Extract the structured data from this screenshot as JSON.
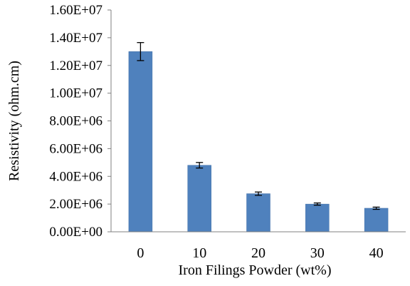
{
  "chart_data": {
    "type": "bar",
    "title": "",
    "xlabel": "Iron Filings Powder (wt%)",
    "ylabel": "Resistivity (ohm.cm)",
    "categories": [
      "0",
      "10",
      "20",
      "30",
      "40"
    ],
    "values": [
      13000000,
      4800000,
      2750000,
      2000000,
      1700000
    ],
    "error": [
      650000,
      200000,
      120000,
      80000,
      80000
    ],
    "ylim": [
      0,
      16000000
    ],
    "y_ticks": [
      0,
      2000000,
      4000000,
      6000000,
      8000000,
      10000000,
      12000000,
      14000000,
      16000000
    ],
    "y_tick_labels": [
      "0.00E+00",
      "2.00E+06",
      "4.00E+06",
      "6.00E+06",
      "8.00E+06",
      "1.00E+07",
      "1.20E+07",
      "1.40E+07",
      "1.60E+07"
    ],
    "grid": false,
    "legend": "none",
    "error_bars": true
  },
  "colors": {
    "bar_fill": "#4f81bd",
    "bar_stroke": "#3f6fa8",
    "axis": "#808080",
    "text": "#000000"
  }
}
